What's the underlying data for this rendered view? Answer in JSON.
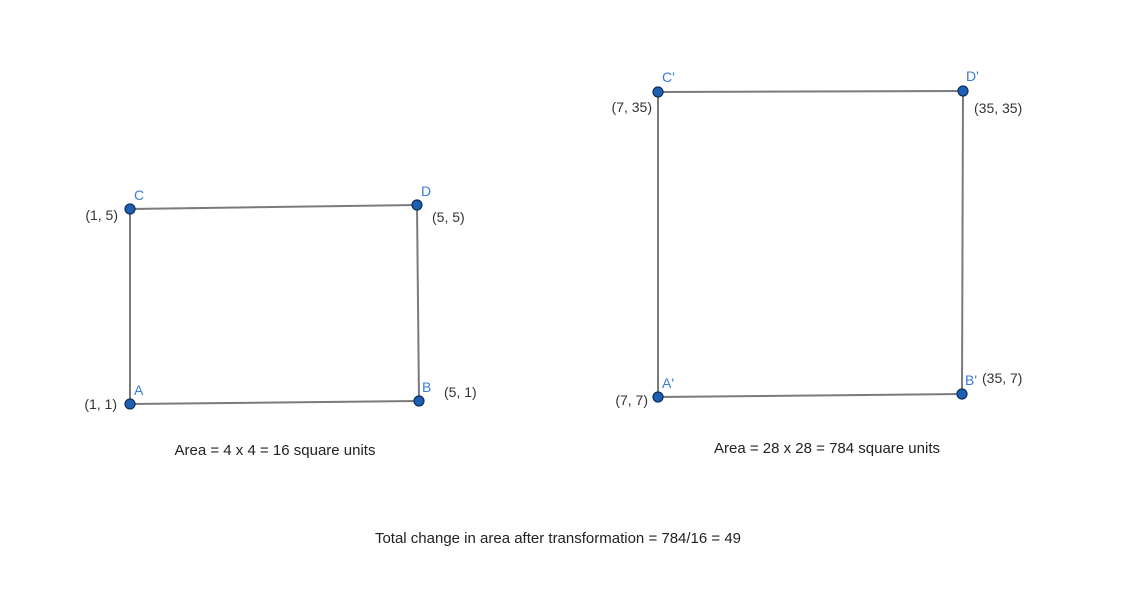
{
  "colors": {
    "edge": "#7a7a7a",
    "point": "#1e5fb4",
    "vertex_label": "#3a7bd5",
    "text": "#222222"
  },
  "original": {
    "vertices": {
      "A": {
        "name": "A",
        "coord": "(1, 1)"
      },
      "B": {
        "name": "B",
        "coord": "(5, 1)"
      },
      "C": {
        "name": "C",
        "coord": "(1, 5)"
      },
      "D": {
        "name": "D",
        "coord": "(5, 5)"
      }
    },
    "area_text": "Area = 4 x 4 = 16 square units"
  },
  "image": {
    "vertices": {
      "A": {
        "name": "A'",
        "coord": "(7, 7)"
      },
      "B": {
        "name": "B'",
        "coord": "(35, 7)"
      },
      "C": {
        "name": "C'",
        "coord": "(7, 35)"
      },
      "D": {
        "name": "D'",
        "coord": "(35, 35)"
      }
    },
    "area_text": "Area = 28 x 28 = 784 square units"
  },
  "summary_text": "Total change in area after transformation = 784/16 = 49"
}
